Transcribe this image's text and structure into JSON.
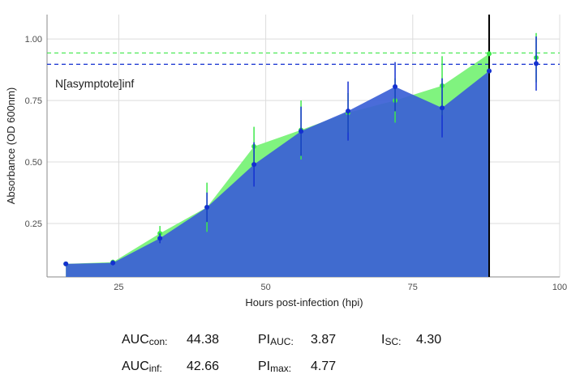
{
  "chart_data": {
    "type": "area-points",
    "xlabel": "Hours post-infection (hpi)",
    "ylabel": "Absorbance (OD 600nm)",
    "annotation": "N[asymptote]inf",
    "x": [
      16,
      24,
      32,
      40,
      48,
      56,
      64,
      72,
      80,
      88,
      96
    ],
    "series": [
      {
        "color": "#3ee84a",
        "area_color": "#80f37f",
        "values": [
          0.086,
          0.093,
          0.21,
          0.316,
          0.563,
          0.63,
          0.7,
          0.75,
          0.81,
          0.94,
          0.924
        ],
        "errors": [
          0.0,
          0.01,
          0.03,
          0.1,
          0.08,
          0.12,
          0.08,
          0.09,
          0.12,
          0.0,
          0.1
        ],
        "asymptote": 0.943
      },
      {
        "color": "#1330d0",
        "area_color": "#3b5fd6",
        "values": [
          0.086,
          0.09,
          0.19,
          0.316,
          0.49,
          0.625,
          0.707,
          0.806,
          0.72,
          0.87,
          0.9
        ],
        "errors": [
          0.0,
          0.01,
          0.02,
          0.06,
          0.09,
          0.1,
          0.12,
          0.1,
          0.12,
          0.0,
          0.11
        ],
        "asymptote": 0.897
      }
    ],
    "vline": 88,
    "xlim": [
      12.8,
      100
    ],
    "ylim": [
      0.033,
      1.099
    ],
    "xticks": [
      25,
      50,
      75,
      100
    ],
    "yticks": [
      {
        "value": 0.25,
        "label": "0.25"
      },
      {
        "value": 0.5,
        "label": "0.50"
      },
      {
        "value": 0.75,
        "label": "0.75"
      },
      {
        "value": 1.0,
        "label": "1.00"
      }
    ],
    "grid": true
  },
  "stats": [
    {
      "label": "AUC",
      "sub": "con:",
      "value": "44.38"
    },
    {
      "label": "PI",
      "sub": "AUC:",
      "value": "3.87"
    },
    {
      "label": "I",
      "sub": "SC:",
      "value": "4.30"
    },
    {
      "label": "AUC",
      "sub": "inf:",
      "value": "42.66"
    },
    {
      "label": "PI",
      "sub": "max:",
      "value": "4.77"
    }
  ]
}
